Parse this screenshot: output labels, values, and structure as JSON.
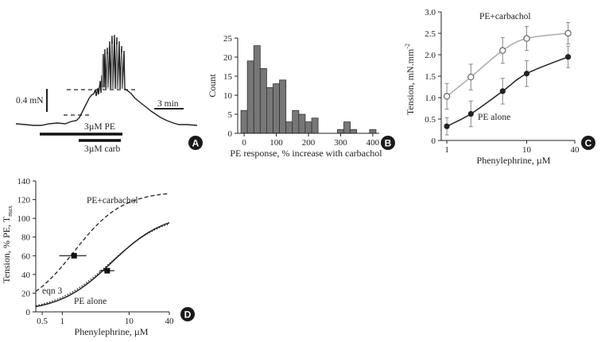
{
  "colors": {
    "ink": "#222222",
    "bar_fill": "#777777",
    "gray_curve": "#aaaaaa",
    "badge": "#1a1a1a"
  },
  "chart_data": [
    {
      "panel": "A",
      "type": "line",
      "annotations": [
        "0.4 mN",
        "3 min",
        "3µM PE",
        "3µM carb"
      ]
    },
    {
      "panel": "B",
      "type": "bar",
      "xlabel": "PE response, % increase with carbachol",
      "ylabel": "Count",
      "xlim": [
        -20,
        420
      ],
      "ylim": [
        0,
        25
      ],
      "xticks": [
        0,
        100,
        200,
        300,
        400
      ],
      "yticks": [
        0,
        5,
        10,
        15,
        20,
        25
      ],
      "bin_width": 20,
      "bin_starts": [
        -10,
        10,
        30,
        50,
        70,
        90,
        110,
        130,
        150,
        170,
        190,
        210,
        230,
        250,
        270,
        290,
        310,
        330,
        350,
        370,
        390
      ],
      "counts": [
        6,
        19,
        23,
        17,
        12,
        13,
        14,
        3,
        6,
        5,
        3,
        4,
        0,
        0,
        0,
        1,
        3,
        1,
        0,
        0,
        1
      ]
    },
    {
      "panel": "C",
      "type": "scatter",
      "xlabel": "Phenylephrine, µM",
      "ylabel": "Tension, mN.mm",
      "ylabel_sup": "-2",
      "xscale": "log",
      "xlim": [
        0.85,
        40
      ],
      "ylim": [
        0,
        3.0
      ],
      "xticks": [
        1,
        10,
        40
      ],
      "yticks": [
        "0",
        "0.5",
        "1.0",
        "1.5",
        "2.0",
        "2.5",
        "3.0"
      ],
      "series": [
        {
          "name": "PE+carbachol",
          "marker": "open-circle",
          "x": [
            1,
            2,
            5,
            10,
            33
          ],
          "y": [
            1.03,
            1.48,
            2.1,
            2.38,
            2.5
          ],
          "err": [
            0.3,
            0.3,
            0.3,
            0.28,
            0.25
          ]
        },
        {
          "name": "PE alone",
          "marker": "filled-circle",
          "x": [
            1,
            2,
            5,
            10,
            33
          ],
          "y": [
            0.33,
            0.62,
            1.15,
            1.56,
            1.95
          ],
          "err": [
            0.2,
            0.3,
            0.3,
            0.3,
            0.25
          ]
        }
      ]
    },
    {
      "panel": "D",
      "type": "line",
      "xlabel": "Phenylephrine, µM",
      "ylabel": "Tension, % PE, T",
      "ylabel_sub": "max",
      "xscale": "log",
      "xlim": [
        0.4,
        40
      ],
      "ylim": [
        0,
        140
      ],
      "xticks": [
        "0.5",
        "1",
        "10",
        "40"
      ],
      "xtick_values": [
        0.5,
        1,
        10,
        40
      ],
      "yticks": [
        "0",
        "20",
        "40",
        "60",
        "80",
        "100",
        "120",
        "140"
      ],
      "curves": [
        {
          "name": "PE+carbachol",
          "style": "dashed",
          "ec50": 1.5,
          "emax": 129,
          "hill": 1.2
        },
        {
          "name": "PE alone",
          "style": "solid",
          "ec50": 5.5,
          "emax": 106,
          "hill": 1.1
        },
        {
          "name": "eqn 3",
          "style": "dotted",
          "ec50": 5.2,
          "emax": 105,
          "hill": 1.05
        }
      ],
      "points": [
        {
          "x": 1.5,
          "y": 60,
          "xerr_low": 0.9,
          "xerr_high": 2.3,
          "yerr": 2
        },
        {
          "x": 4.7,
          "y": 44,
          "xerr_low": 3.6,
          "xerr_high": 6.0,
          "yerr": 2
        }
      ]
    }
  ],
  "badges": [
    "A",
    "B",
    "C",
    "D"
  ]
}
